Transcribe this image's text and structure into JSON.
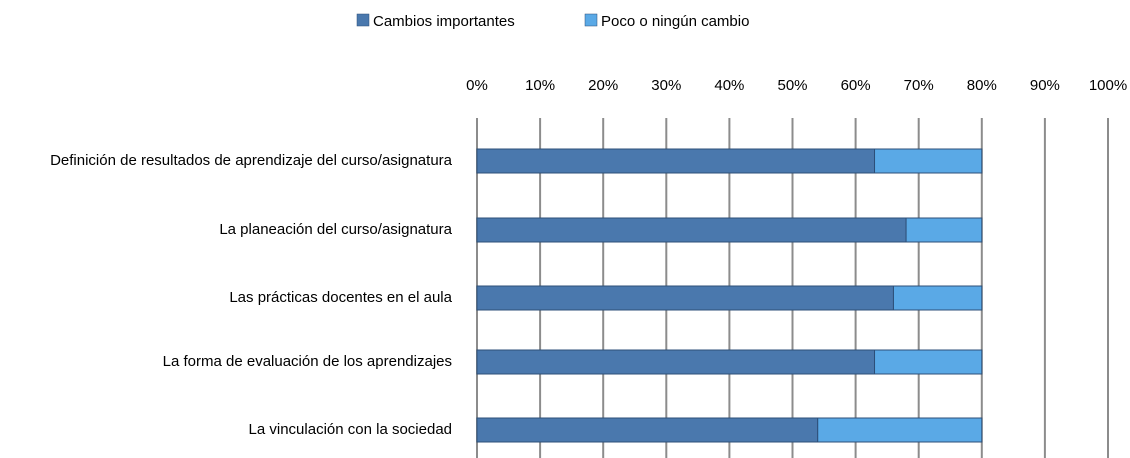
{
  "chart_data": {
    "type": "stacked-barh",
    "categories": [
      "Definición de resultados de aprendizaje del curso/asignatura",
      "La planeación del curso/asignatura",
      "Las prácticas docentes en el aula",
      "La forma de evaluación de los aprendizajes",
      "La vinculación con la sociedad"
    ],
    "series": [
      {
        "name": "Cambios importantes",
        "color": "#4a78ad",
        "values": [
          63,
          68,
          66,
          63,
          54
        ]
      },
      {
        "name": "Poco o ningún cambio",
        "color": "#5aa9e6",
        "values": [
          17,
          12,
          14,
          17,
          26
        ]
      }
    ],
    "xlim": [
      0,
      100
    ],
    "xticks": [
      {
        "value": 0,
        "label": "0%"
      },
      {
        "value": 10,
        "label": "10%"
      },
      {
        "value": 20,
        "label": "20%"
      },
      {
        "value": 30,
        "label": "30%"
      },
      {
        "value": 40,
        "label": "40%"
      },
      {
        "value": 50,
        "label": "50%"
      },
      {
        "value": 60,
        "label": "60%"
      },
      {
        "value": 70,
        "label": "70%"
      },
      {
        "value": 80,
        "label": "80%"
      },
      {
        "value": 90,
        "label": "90%"
      },
      {
        "value": 100,
        "label": "100%"
      }
    ],
    "grid": true,
    "legend": "top"
  }
}
